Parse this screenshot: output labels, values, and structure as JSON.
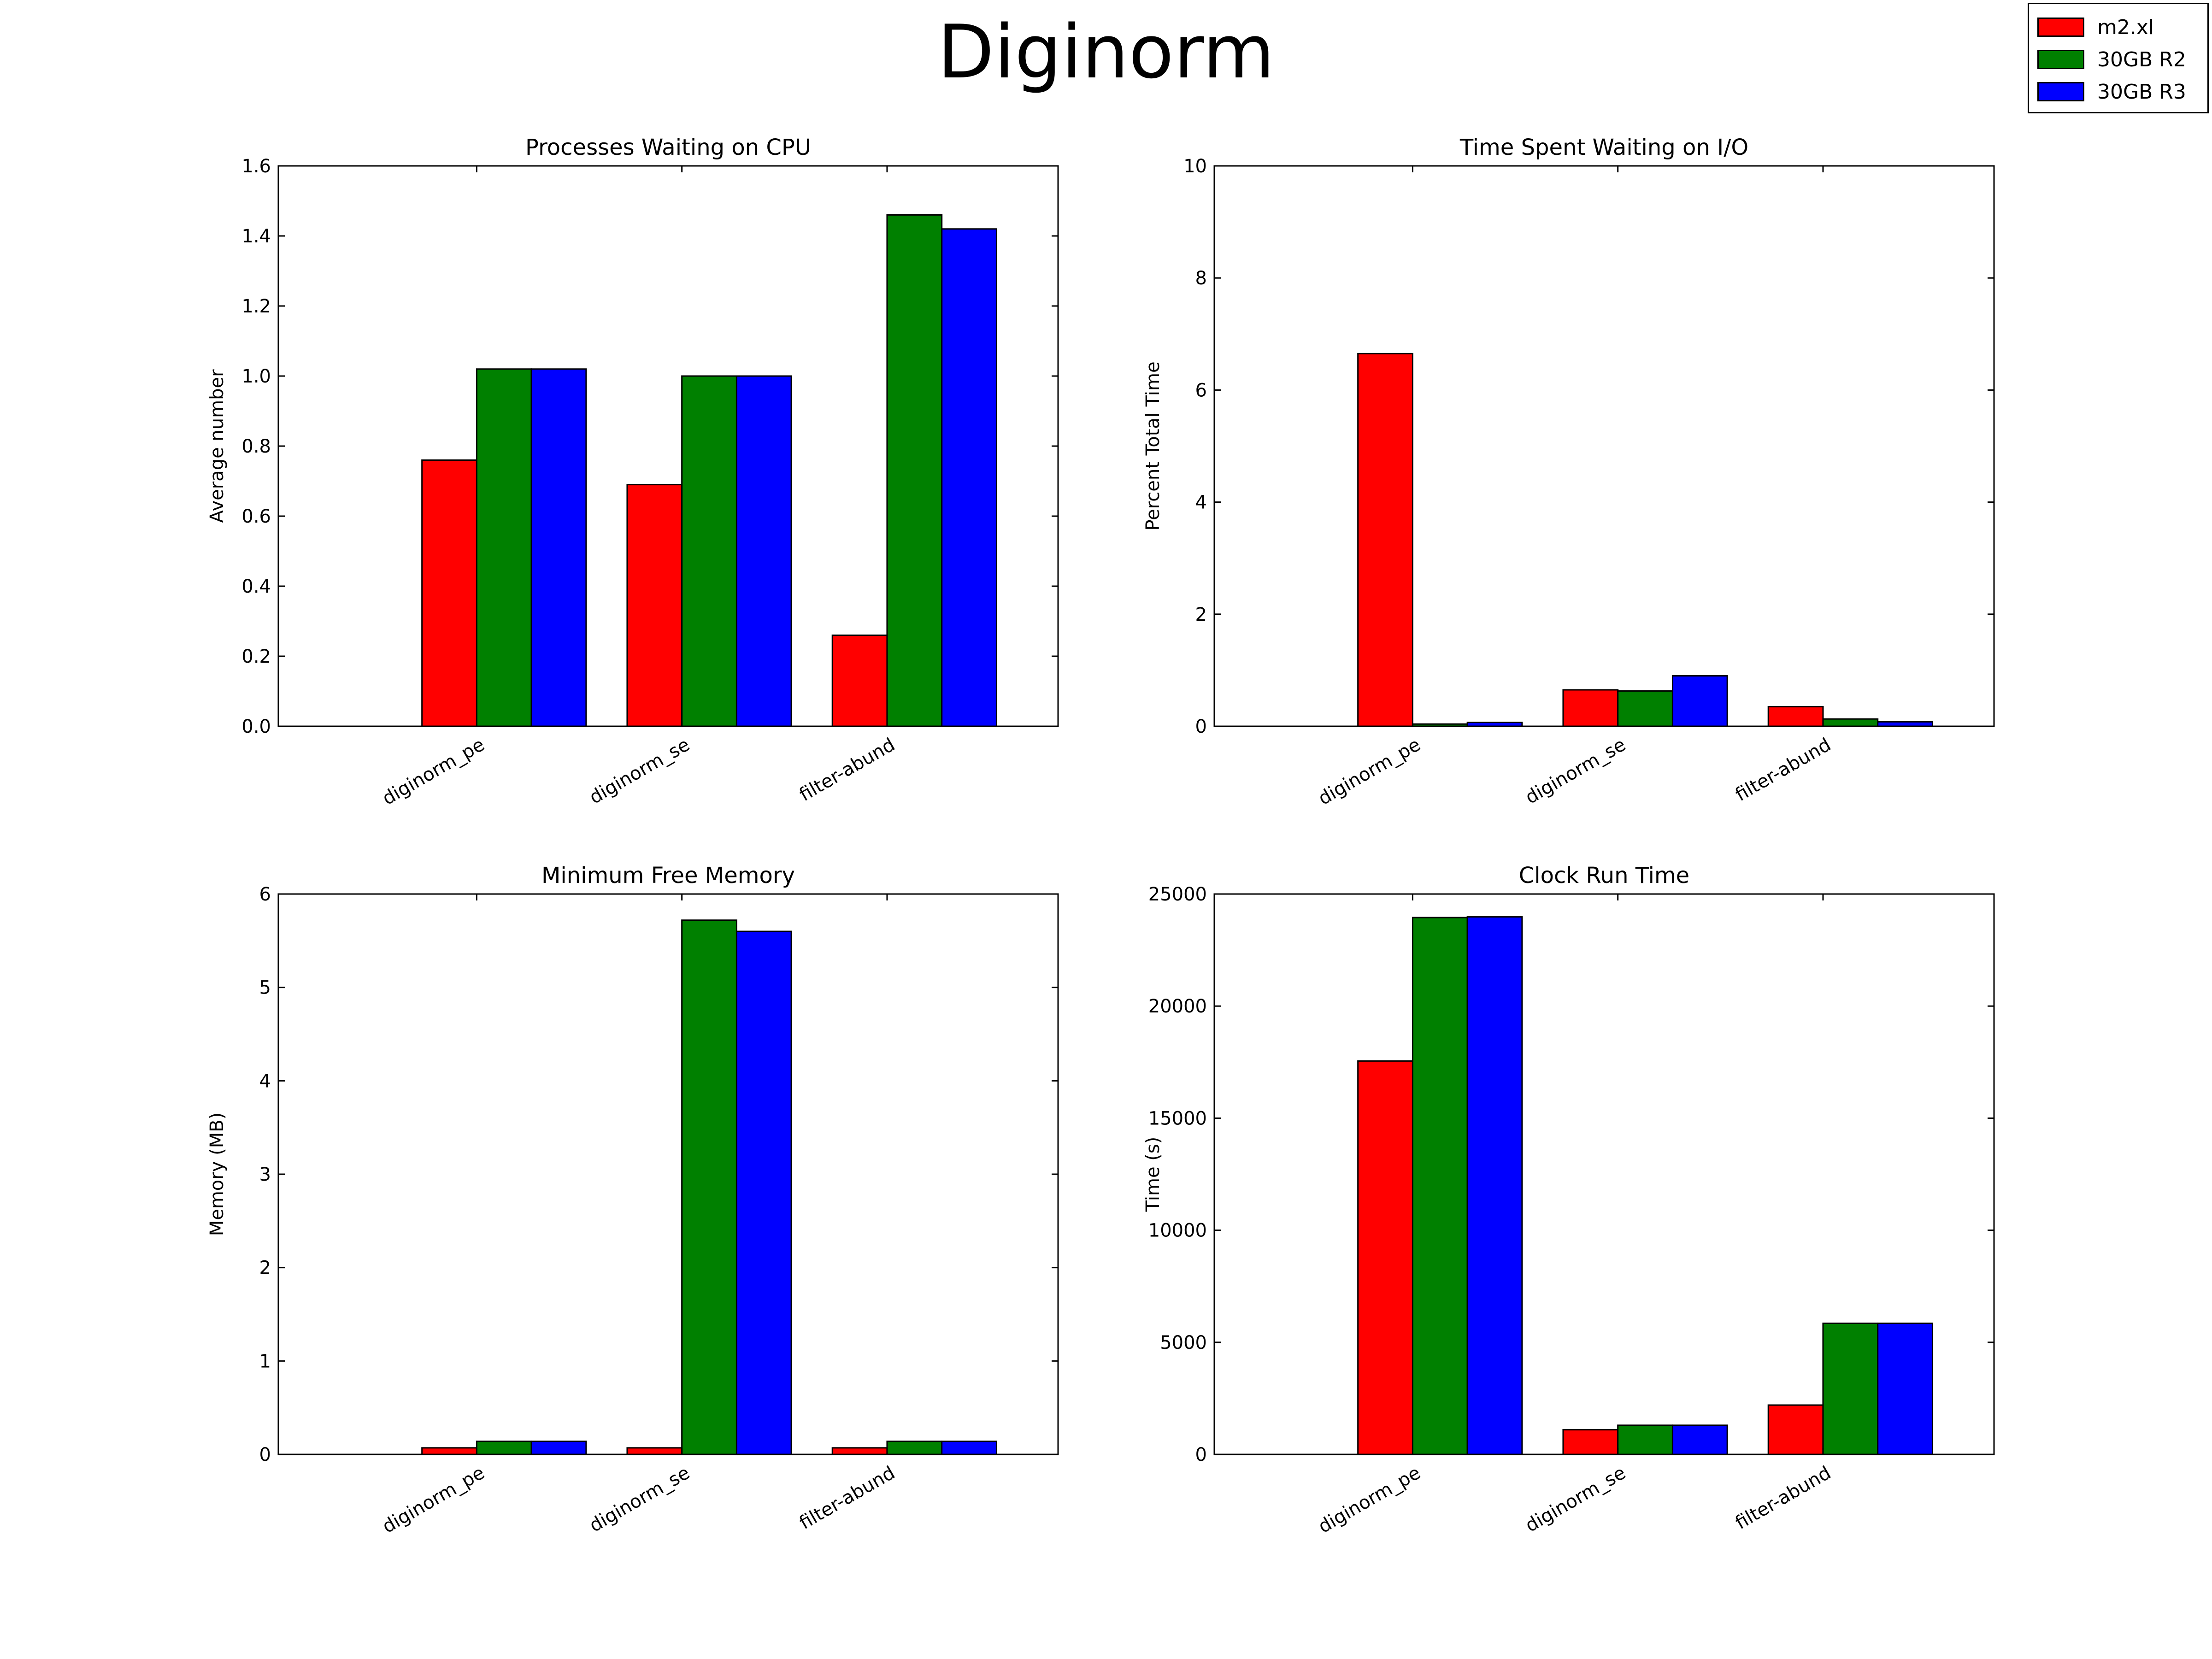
{
  "figure": {
    "title": "Diginorm"
  },
  "legend": {
    "items": [
      {
        "label": "m2.xl",
        "color": "#ff0000"
      },
      {
        "label": "30GB R2",
        "color": "#008000"
      },
      {
        "label": "30GB R3",
        "color": "#0000ff"
      }
    ]
  },
  "chart_data": [
    {
      "type": "bar",
      "title": "Processes Waiting on CPU",
      "xlabel": "",
      "ylabel": "Average number",
      "categories": [
        "diginorm_pe",
        "diginorm_se",
        "filter-abund"
      ],
      "series": [
        {
          "name": "m2.xl",
          "values": [
            0.76,
            0.69,
            0.26
          ]
        },
        {
          "name": "30GB R2",
          "values": [
            1.02,
            1.0,
            1.46
          ]
        },
        {
          "name": "30GB R3",
          "values": [
            1.02,
            1.0,
            1.42
          ]
        }
      ],
      "ylim": [
        0,
        1.6
      ],
      "yticks": [
        "0.0",
        "0.2",
        "0.4",
        "0.6",
        "0.8",
        "1.0",
        "1.2",
        "1.4",
        "1.6"
      ],
      "grid": false
    },
    {
      "type": "bar",
      "title": "Time Spent Waiting on I/O",
      "xlabel": "",
      "ylabel": "Percent Total Time",
      "categories": [
        "diginorm_pe",
        "diginorm_se",
        "filter-abund"
      ],
      "series": [
        {
          "name": "m2.xl",
          "values": [
            6.65,
            0.65,
            0.35
          ]
        },
        {
          "name": "30GB R2",
          "values": [
            0.04,
            0.63,
            0.13
          ]
        },
        {
          "name": "30GB R3",
          "values": [
            0.07,
            0.9,
            0.08
          ]
        }
      ],
      "ylim": [
        0,
        10
      ],
      "yticks": [
        "0",
        "2",
        "4",
        "6",
        "8",
        "10"
      ],
      "grid": false
    },
    {
      "type": "bar",
      "title": "Minimum Free Memory",
      "xlabel": "",
      "ylabel": "Memory (MB)",
      "categories": [
        "diginorm_pe",
        "diginorm_se",
        "filter-abund"
      ],
      "series": [
        {
          "name": "m2.xl",
          "values": [
            0.07,
            0.07,
            0.07
          ]
        },
        {
          "name": "30GB R2",
          "values": [
            0.14,
            5.72,
            0.14
          ]
        },
        {
          "name": "30GB R3",
          "values": [
            0.14,
            5.6,
            0.14
          ]
        }
      ],
      "ylim": [
        0,
        6
      ],
      "yticks": [
        "0",
        "1",
        "2",
        "3",
        "4",
        "5",
        "6"
      ],
      "grid": false
    },
    {
      "type": "bar",
      "title": "Clock Run Time",
      "xlabel": "",
      "ylabel": "Time (s)",
      "categories": [
        "diginorm_pe",
        "diginorm_se",
        "filter-abund"
      ],
      "series": [
        {
          "name": "m2.xl",
          "values": [
            17550,
            1100,
            2200
          ]
        },
        {
          "name": "30GB R2",
          "values": [
            23950,
            1300,
            5850
          ]
        },
        {
          "name": "30GB R3",
          "values": [
            23980,
            1300,
            5850
          ]
        }
      ],
      "ylim": [
        0,
        25000
      ],
      "yticks": [
        "0",
        "5000",
        "10000",
        "15000",
        "20000",
        "25000"
      ],
      "grid": false
    }
  ]
}
